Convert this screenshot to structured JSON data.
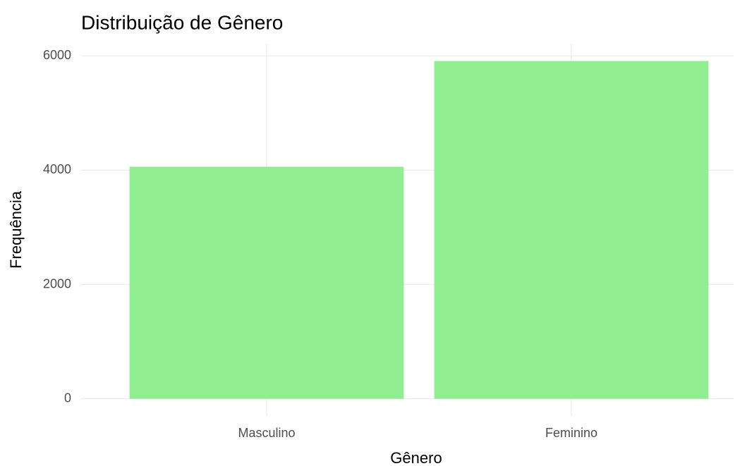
{
  "chart_data": {
    "type": "bar",
    "title": "Distribuição de Gênero",
    "x_label": "Gênero",
    "y_label": "Frequência",
    "categories": [
      "Masculino",
      "Feminino"
    ],
    "values": [
      4060,
      5910
    ],
    "color": "#90ee90",
    "ylim": [
      -300,
      6200
    ],
    "yticks": [
      0,
      2000,
      4000,
      6000
    ],
    "grid": true
  }
}
